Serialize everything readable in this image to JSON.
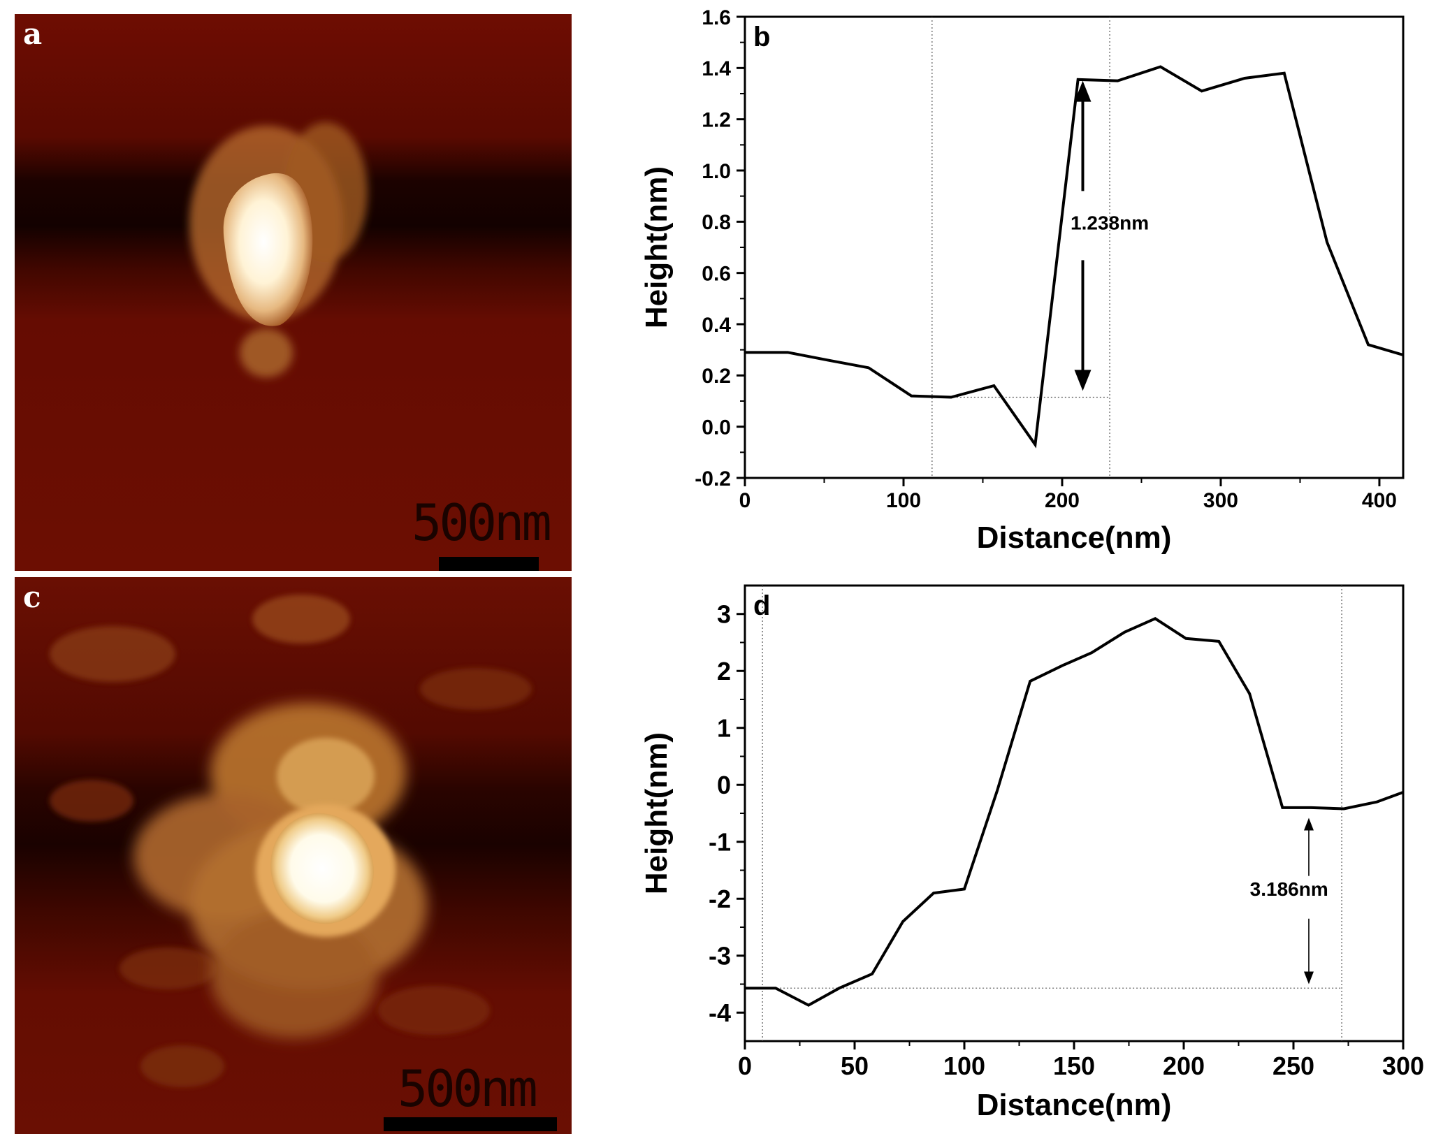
{
  "panels": {
    "a": {
      "letter": "a",
      "scale_text": "500nm"
    },
    "c": {
      "letter": "c",
      "scale_text": "500nm"
    }
  },
  "colors": {
    "afm_dark": "#6e0d02",
    "afm_band": "#1a0200",
    "afm_bright": "#fffdf0",
    "afm_mid": "#c97a2c",
    "line": "#000000"
  },
  "chart_data": [
    {
      "type": "line",
      "panel_letter": "b",
      "xlabel": "Distance(nm)",
      "ylabel": "Height(nm)",
      "xlim": [
        0,
        415
      ],
      "ylim": [
        -0.2,
        1.6
      ],
      "xticks": [
        0,
        100,
        200,
        300,
        400
      ],
      "xtick_labels": [
        "0",
        "100",
        "200",
        "300",
        "400"
      ],
      "yticks": [
        -0.2,
        0.0,
        0.2,
        0.4,
        0.6,
        0.8,
        1.0,
        1.2,
        1.4,
        1.6
      ],
      "ytick_labels": [
        "-0.2",
        "0.0",
        "0.2",
        "0.4",
        "0.6",
        "0.8",
        "1.0",
        "1.2",
        "1.4",
        "1.6"
      ],
      "series": [
        {
          "x": [
            0,
            27,
            52,
            78,
            105,
            130,
            157,
            183,
            210,
            235,
            262,
            288,
            315,
            340,
            367,
            393,
            415
          ],
          "y": [
            0.29,
            0.29,
            0.26,
            0.23,
            0.12,
            0.115,
            0.16,
            -0.07,
            1.355,
            1.35,
            1.405,
            1.31,
            1.36,
            1.38,
            0.72,
            0.32,
            0.28
          ]
        }
      ],
      "guides": {
        "vlines": [
          118,
          230
        ],
        "hline": {
          "y": 0.115,
          "x_from": 118,
          "x_to": 230
        }
      },
      "annotation": {
        "text": "1.238nm",
        "x": 230,
        "y": 0.77,
        "arrow_x": 213,
        "arrow_top": 1.35,
        "arrow_bottom": 0.14,
        "gap_from": 0.92,
        "gap_to": 0.65
      }
    },
    {
      "type": "line",
      "panel_letter": "d",
      "xlabel": "Distance(nm)",
      "ylabel": "Height(nm)",
      "xlim": [
        0,
        300
      ],
      "ylim": [
        -4.5,
        3.5
      ],
      "xticks": [
        0,
        50,
        100,
        150,
        200,
        250,
        300
      ],
      "xtick_labels": [
        "0",
        "50",
        "100",
        "150",
        "200",
        "250",
        "300"
      ],
      "yticks": [
        -4,
        -3,
        -2,
        -1,
        0,
        1,
        2,
        3
      ],
      "ytick_labels": [
        "-4",
        "-3",
        "-2",
        "-1",
        "0",
        "1",
        "2",
        "3"
      ],
      "series": [
        {
          "x": [
            0,
            14,
            29,
            43,
            58,
            72,
            86,
            100,
            115,
            130,
            145,
            158,
            173,
            187,
            201,
            216,
            230,
            245,
            258,
            273,
            288,
            300
          ],
          "y": [
            -3.57,
            -3.57,
            -3.87,
            -3.57,
            -3.32,
            -2.4,
            -1.9,
            -1.83,
            -0.1,
            1.82,
            2.1,
            2.32,
            2.68,
            2.92,
            2.57,
            2.52,
            1.6,
            -0.4,
            -0.4,
            -0.42,
            -0.3,
            -0.13
          ]
        }
      ],
      "guides": {
        "vlines": [
          8,
          272
        ],
        "hline": {
          "y": -3.57,
          "x_from": 8,
          "x_to": 272
        }
      },
      "annotation": {
        "text": "3.186nm",
        "x": 248,
        "y": -1.95,
        "arrow_x": 257,
        "arrow_top": -0.58,
        "arrow_bottom": -3.5,
        "gap_from": -1.6,
        "gap_to": -2.35
      }
    }
  ]
}
